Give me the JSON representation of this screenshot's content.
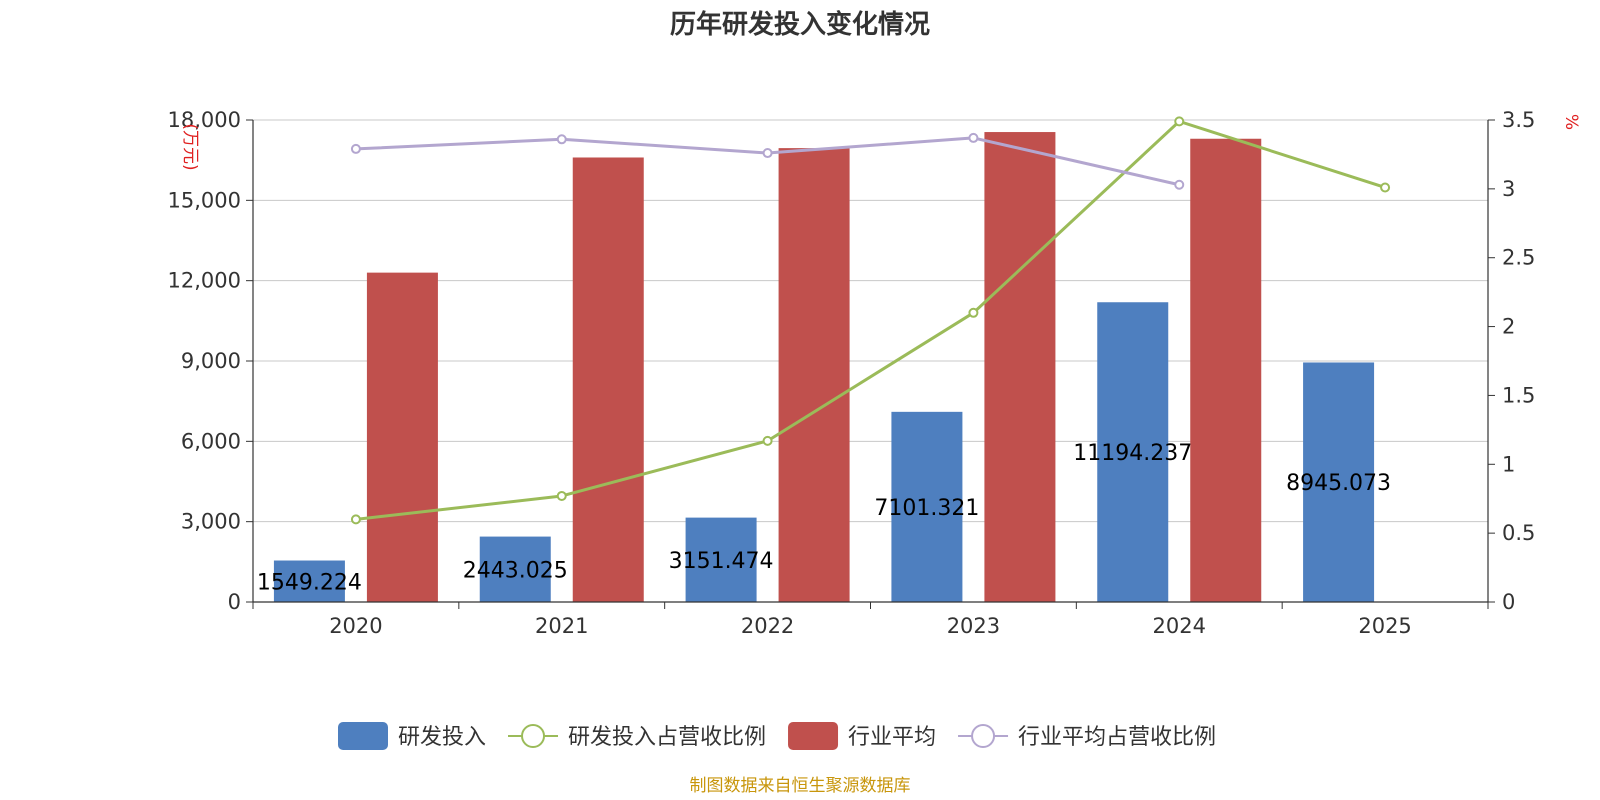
{
  "chart_data": {
    "type": "bar",
    "title": "历年研发投入变化情况",
    "categories": [
      "2020",
      "2021",
      "2022",
      "2023",
      "2024",
      "2025"
    ],
    "y_left": {
      "unit_label": "(万元)",
      "ylim": [
        0,
        18000
      ],
      "ticks": [
        "0",
        "3,000",
        "6,000",
        "9,000",
        "12,000",
        "15,000",
        "18,000"
      ],
      "tick_values": [
        0,
        3000,
        6000,
        9000,
        12000,
        15000,
        18000
      ]
    },
    "y_right": {
      "unit_label": "%",
      "ylim": [
        0,
        3.5
      ],
      "ticks": [
        "0",
        "0.5",
        "1",
        "1.5",
        "2",
        "2.5",
        "3",
        "3.5"
      ],
      "tick_values": [
        0,
        0.5,
        1,
        1.5,
        2,
        2.5,
        3,
        3.5
      ]
    },
    "grid": true,
    "legend_position": "bottom",
    "series": [
      {
        "name": "研发投入",
        "type": "bar",
        "axis": "left",
        "color": "#4e7fbf",
        "values": [
          1549.224,
          2443.025,
          3151.474,
          7101.321,
          11194.237,
          8945.073
        ],
        "labels": [
          "1549.224",
          "2443.025",
          "3151.474",
          "7101.321",
          "11194.237",
          "8945.073"
        ]
      },
      {
        "name": "研发投入占营收比例",
        "type": "line",
        "axis": "right",
        "color": "#9bbb59",
        "values": [
          0.6,
          0.77,
          1.17,
          2.1,
          3.49,
          3.01
        ]
      },
      {
        "name": "行业平均",
        "type": "bar",
        "axis": "left",
        "color": "#c0504d",
        "values": [
          12300,
          16600,
          16950,
          17550,
          17300,
          null
        ]
      },
      {
        "name": "行业平均占营收比例",
        "type": "line",
        "axis": "right",
        "color": "#b3a6cf",
        "values": [
          3.29,
          3.36,
          3.26,
          3.37,
          3.03,
          null
        ]
      }
    ]
  },
  "footer": {
    "source": "制图数据来自恒生聚源数据库"
  }
}
